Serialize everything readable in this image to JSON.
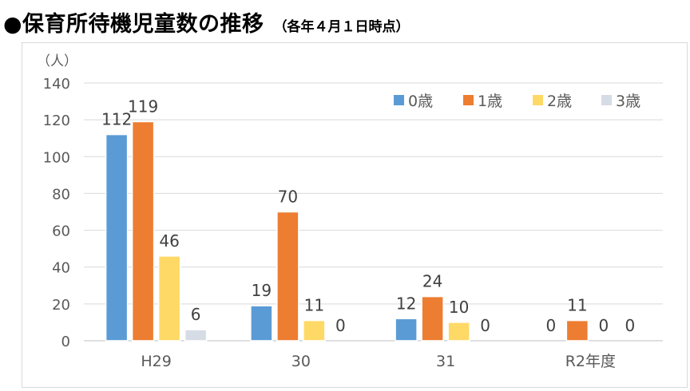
{
  "heading": {
    "title": "●保育所待機児童数の推移",
    "subtitle": "（各年４月１日時点）"
  },
  "chart_data": {
    "type": "bar",
    "unit_label": "（人）",
    "categories": [
      "H29",
      "30",
      "31",
      "R2年度"
    ],
    "series": [
      {
        "name": "0歳",
        "color": "#5b9bd5",
        "values": [
          112,
          19,
          12,
          0
        ]
      },
      {
        "name": "1歳",
        "color": "#ed7d31",
        "values": [
          119,
          70,
          24,
          11
        ]
      },
      {
        "name": "2歳",
        "color": "#ffd966",
        "values": [
          46,
          11,
          10,
          0
        ]
      },
      {
        "name": "3歳",
        "color": "#d6dce5",
        "values": [
          6,
          0,
          0,
          0
        ]
      }
    ],
    "ylim": [
      0,
      140
    ],
    "yticks": [
      0,
      20,
      40,
      60,
      80,
      100,
      120,
      140
    ],
    "grid": true,
    "legend_position": "top-right",
    "data_labels": true
  }
}
